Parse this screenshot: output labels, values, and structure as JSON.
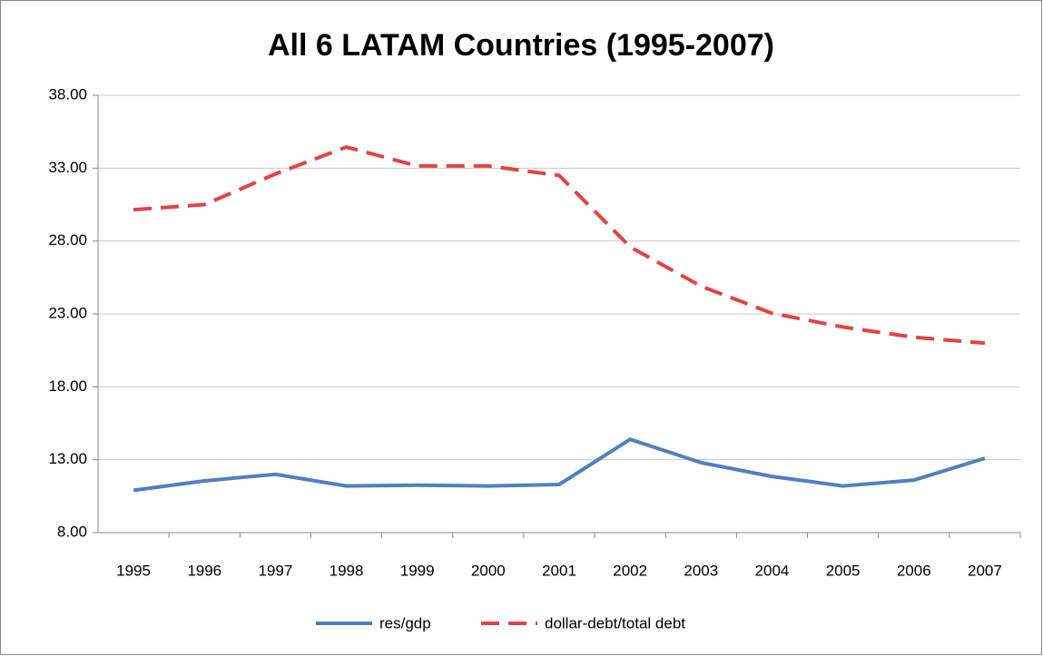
{
  "chart_data": {
    "type": "line",
    "title": "All 6 LATAM Countries (1995-2007)",
    "categories": [
      "1995",
      "1996",
      "1997",
      "1998",
      "1999",
      "2000",
      "2001",
      "2002",
      "2003",
      "2004",
      "2005",
      "2006",
      "2007"
    ],
    "series": [
      {
        "name": "res/gdp",
        "color": "#4f81bd",
        "dash": false,
        "values": [
          10.9,
          11.55,
          12.0,
          11.2,
          11.25,
          11.2,
          11.3,
          14.4,
          12.8,
          11.85,
          11.2,
          11.6,
          13.1
        ]
      },
      {
        "name": "dollar-debt/total debt",
        "color": "#e04444",
        "dash": true,
        "values": [
          30.15,
          30.5,
          32.6,
          34.45,
          33.15,
          33.15,
          32.5,
          27.6,
          24.9,
          23.05,
          22.1,
          21.4,
          21.0
        ]
      }
    ],
    "ylim": [
      8,
      38
    ],
    "yticks": [
      {
        "value": 8,
        "label": "8.00"
      },
      {
        "value": 13,
        "label": "13.00"
      },
      {
        "value": 18,
        "label": "18.00"
      },
      {
        "value": 23,
        "label": "23.00"
      },
      {
        "value": 28,
        "label": "28.00"
      },
      {
        "value": 33,
        "label": "33.00"
      },
      {
        "value": 38,
        "label": "38.00"
      }
    ],
    "grid": true,
    "legend": "bottom"
  }
}
